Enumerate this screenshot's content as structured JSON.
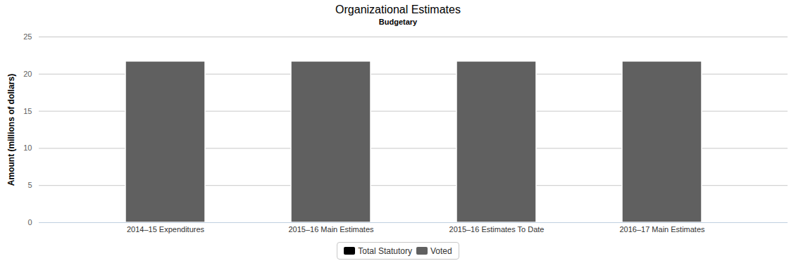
{
  "chart_data": {
    "type": "bar",
    "title": "Organizational Estimates",
    "subtitle": "Budgetary",
    "y_label": "Amount (millions of dollars)",
    "categories": [
      "2014–15 Expenditures",
      "2015–16 Main Estimates",
      "2015–16 Estimates To Date",
      "2016–17 Main Estimates"
    ],
    "series": [
      {
        "name": "Total Statutory",
        "color": "#000000",
        "values": [
          0,
          0,
          0,
          0
        ]
      },
      {
        "name": "Voted",
        "color": "#606060",
        "values": [
          21.7,
          21.7,
          21.7,
          21.7
        ]
      }
    ],
    "stacked": true,
    "ylim": [
      0,
      25
    ],
    "yticks": [
      0,
      5,
      10,
      15,
      20,
      25
    ],
    "grid": true,
    "legend": "bottom"
  }
}
